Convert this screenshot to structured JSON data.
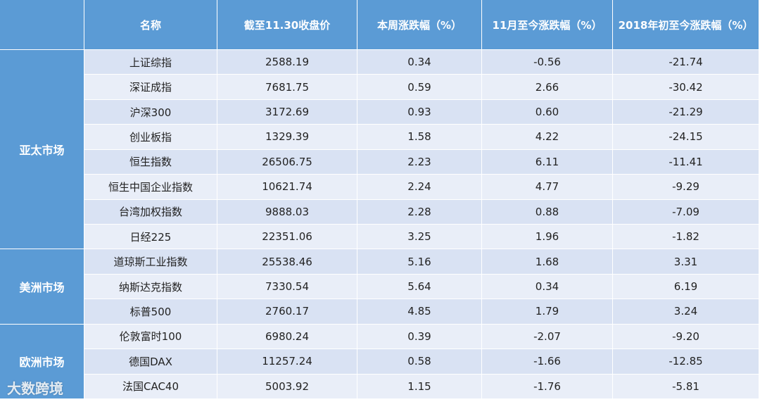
{
  "header": {
    "columns": [
      "名称",
      "截至11.30收盘价",
      "本周涨跌幅（%）",
      "11月至今涨跌幅（%）",
      "2018年初至今涨跌幅（%）"
    ]
  },
  "groups": [
    {
      "name": "亚太市场",
      "rows": [
        [
          "上证综指",
          "2588.19",
          "0.34",
          "-0.56",
          "-21.74"
        ],
        [
          "深证成指",
          "7681.75",
          "0.59",
          "2.66",
          "-30.42"
        ],
        [
          "沪深300",
          "3172.69",
          "0.93",
          "0.60",
          "-21.29"
        ],
        [
          "创业板指",
          "1329.39",
          "1.58",
          "4.22",
          "-24.15"
        ],
        [
          "恒生指数",
          "26506.75",
          "2.23",
          "6.11",
          "-11.41"
        ],
        [
          "恒生中国企业指数",
          "10621.74",
          "2.24",
          "4.77",
          "-9.29"
        ],
        [
          "台湾加权指数",
          "9888.03",
          "2.28",
          "0.88",
          "-7.09"
        ],
        [
          "日经225",
          "22351.06",
          "3.25",
          "1.96",
          "-1.82"
        ]
      ]
    },
    {
      "name": "美洲市场",
      "rows": [
        [
          "道琼斯工业指数",
          "25538.46",
          "5.16",
          "1.68",
          "3.31"
        ],
        [
          "纳斯达克指数",
          "7330.54",
          "5.64",
          "0.34",
          "6.19"
        ],
        [
          "标普500",
          "2760.17",
          "4.85",
          "1.79",
          "3.24"
        ]
      ]
    },
    {
      "name": "欧洲市场",
      "rows": [
        [
          "伦敦富时100",
          "6980.24",
          "0.39",
          "-2.07",
          "-9.20"
        ],
        [
          "德国DAX",
          "11257.24",
          "0.58",
          "-1.66",
          "-12.85"
        ],
        [
          "法国CAC40",
          "5003.92",
          "1.15",
          "-1.76",
          "-5.81"
        ]
      ]
    }
  ],
  "watermark": "大数跨境"
}
